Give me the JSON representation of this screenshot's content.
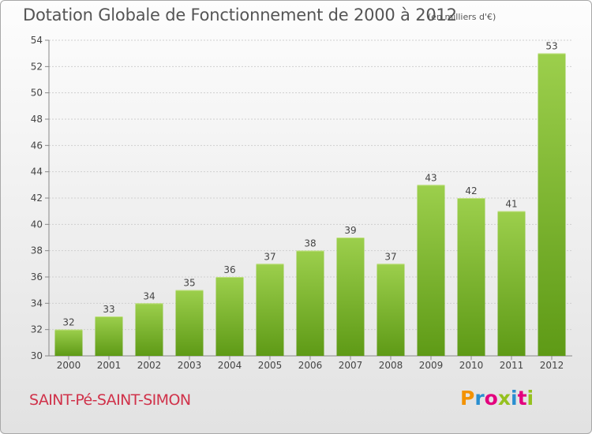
{
  "header": {
    "title": "Dotation Globale de Fonctionnement de 2000 à 2012",
    "subtitle": "(en milliers d'€)"
  },
  "footer": {
    "commune": "SAINT-Pé-SAINT-SIMON",
    "logo_letters": [
      "P",
      "r",
      "o",
      "x",
      "i",
      "t",
      "i"
    ],
    "logo_colors": [
      "#f39200",
      "#2a8fd0",
      "#e3007e",
      "#95c11f",
      "#2a8fd0",
      "#e3007e",
      "#95c11f"
    ]
  },
  "colors": {
    "bar_top": "#9ccf4c",
    "bar_bottom": "#5e9a16",
    "grid": "#cfcfcf",
    "axis": "#888888",
    "text": "#444444"
  },
  "chart_data": {
    "type": "bar",
    "categories": [
      "2000",
      "2001",
      "2002",
      "2003",
      "2004",
      "2005",
      "2006",
      "2007",
      "2008",
      "2009",
      "2010",
      "2011",
      "2012"
    ],
    "values": [
      32,
      33,
      34,
      35,
      36,
      37,
      38,
      39,
      37,
      43,
      42,
      41,
      53
    ],
    "ylim": [
      30,
      54
    ],
    "yticks": [
      30,
      32,
      34,
      36,
      38,
      40,
      42,
      44,
      46,
      48,
      50,
      52,
      54
    ],
    "grid": true,
    "data_labels": true
  }
}
